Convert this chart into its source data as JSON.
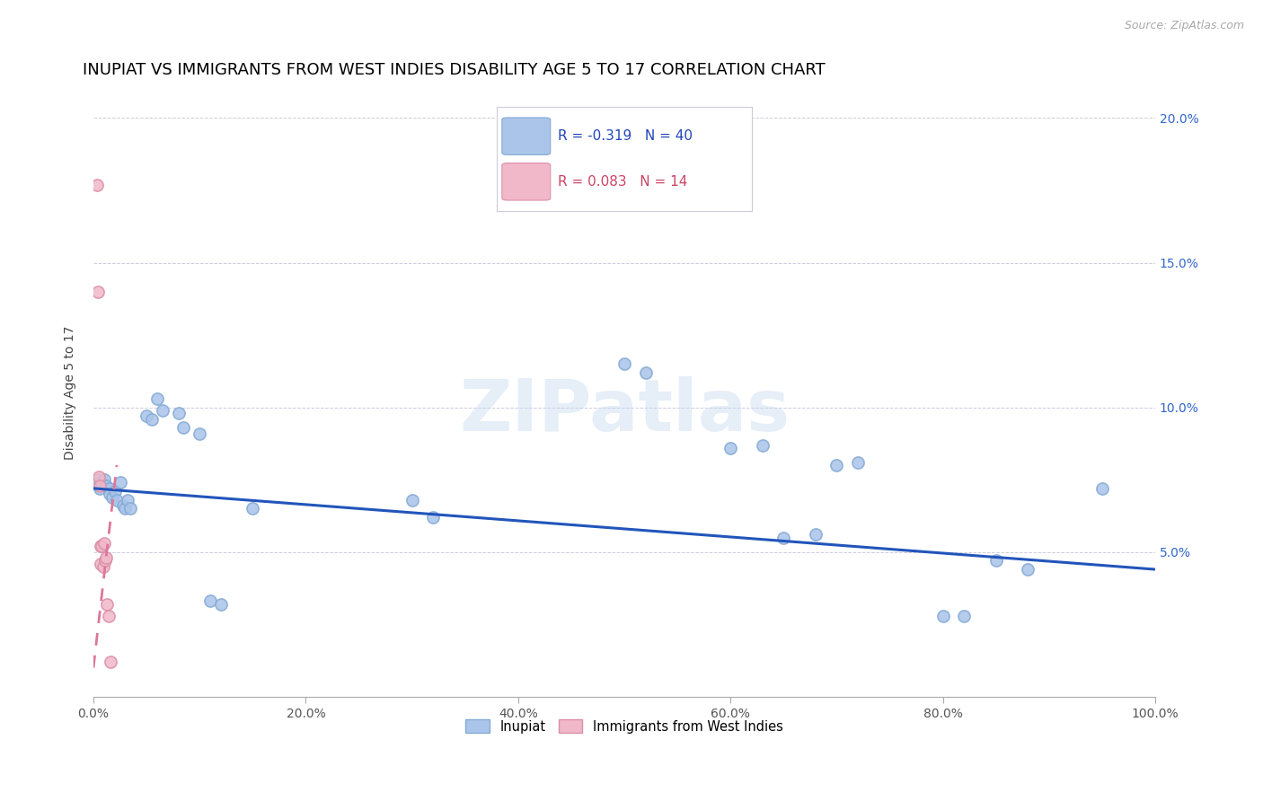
{
  "title": "INUPIAT VS IMMIGRANTS FROM WEST INDIES DISABILITY AGE 5 TO 17 CORRELATION CHART",
  "source": "Source: ZipAtlas.com",
  "ylabel": "Disability Age 5 to 17",
  "xlim": [
    0,
    1.0
  ],
  "ylim": [
    0,
    0.21
  ],
  "xtick_labels": [
    "0.0%",
    "20.0%",
    "40.0%",
    "60.0%",
    "80.0%",
    "100.0%"
  ],
  "xtick_values": [
    0.0,
    0.2,
    0.4,
    0.6,
    0.8,
    1.0
  ],
  "ytick_values": [
    0.05,
    0.1,
    0.15,
    0.2
  ],
  "right_ytick_labels": [
    "5.0%",
    "10.0%",
    "15.0%",
    "20.0%"
  ],
  "right_ytick_values": [
    0.05,
    0.1,
    0.15,
    0.2
  ],
  "inupiat_color": "#aac4ea",
  "inupiat_edge_color": "#85aad4",
  "immigrant_color": "#f0b8c8",
  "immigrant_edge_color": "#dc8fa8",
  "trend_inupiat_color": "#2255bb",
  "trend_immigrant_color": "#dd7799",
  "r_inupiat": "-0.319",
  "n_inupiat": "40",
  "r_immigrant": "0.083",
  "n_immigrant": "14",
  "inupiat_x": [
    0.004,
    0.006,
    0.008,
    0.01,
    0.012,
    0.015,
    0.015,
    0.018,
    0.02,
    0.022,
    0.025,
    0.028,
    0.03,
    0.032,
    0.035,
    0.05,
    0.055,
    0.06,
    0.065,
    0.08,
    0.085,
    0.1,
    0.11,
    0.12,
    0.15,
    0.3,
    0.32,
    0.5,
    0.52,
    0.6,
    0.63,
    0.65,
    0.68,
    0.7,
    0.72,
    0.8,
    0.82,
    0.85,
    0.88,
    0.95
  ],
  "inupiat_y": [
    0.075,
    0.072,
    0.074,
    0.075,
    0.073,
    0.072,
    0.07,
    0.069,
    0.071,
    0.068,
    0.074,
    0.066,
    0.065,
    0.068,
    0.065,
    0.097,
    0.096,
    0.103,
    0.099,
    0.098,
    0.093,
    0.091,
    0.033,
    0.032,
    0.065,
    0.068,
    0.062,
    0.115,
    0.112,
    0.086,
    0.087,
    0.055,
    0.056,
    0.08,
    0.081,
    0.028,
    0.028,
    0.047,
    0.044,
    0.072
  ],
  "immigrant_x": [
    0.003,
    0.004,
    0.005,
    0.006,
    0.007,
    0.007,
    0.008,
    0.009,
    0.01,
    0.011,
    0.012,
    0.013,
    0.014,
    0.016
  ],
  "immigrant_y": [
    0.177,
    0.14,
    0.076,
    0.073,
    0.052,
    0.046,
    0.052,
    0.045,
    0.053,
    0.047,
    0.048,
    0.032,
    0.028,
    0.012
  ],
  "trend_blue_x0": 0.0,
  "trend_blue_x1": 1.0,
  "trend_blue_y0": 0.072,
  "trend_blue_y1": 0.044,
  "trend_pink_x0": 0.0,
  "trend_pink_x1": 0.022,
  "trend_pink_y0": 0.01,
  "trend_pink_y1": 0.08,
  "watermark": "ZIPatlas",
  "title_fontsize": 13,
  "axis_fontsize": 10,
  "tick_fontsize": 10,
  "marker_size": 90
}
